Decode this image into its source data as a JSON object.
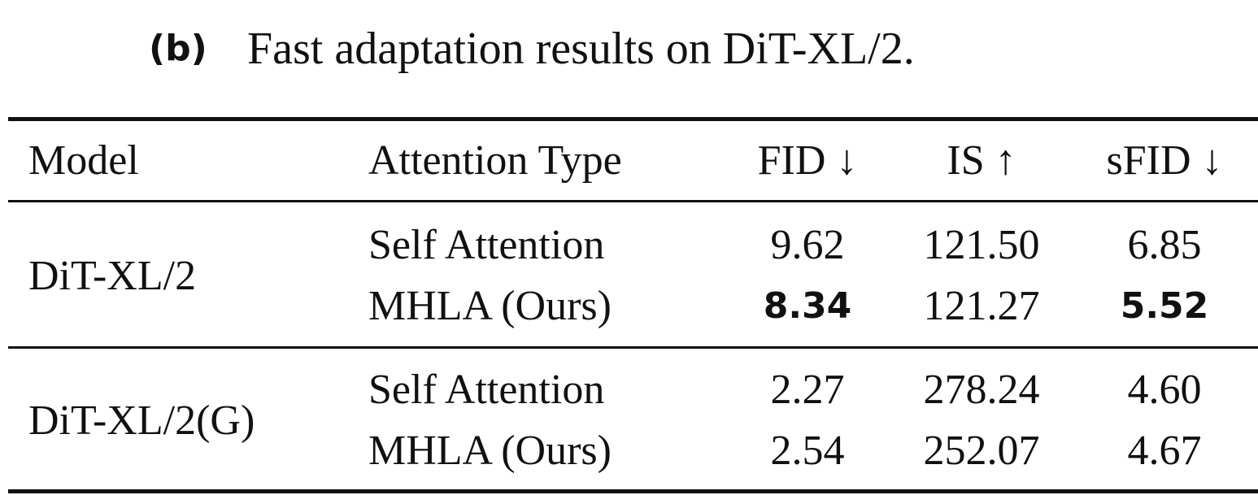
{
  "caption": {
    "label": "(b)",
    "text": "Fast adaptation results on DiT-XL/2."
  },
  "table": {
    "headers": [
      "Model",
      "Attention Type",
      "FID ↓",
      "IS ↑",
      "sFID ↓"
    ],
    "groups": [
      {
        "model": "DiT-XL/2",
        "rows": [
          [
            {
              "text": "Self Attention"
            },
            {
              "text": "9.62"
            },
            {
              "text": "121.50"
            },
            {
              "text": "6.85"
            }
          ],
          [
            {
              "text": "MHLA (Ours)"
            },
            {
              "text": "8.34",
              "bold": true
            },
            {
              "text": "121.27"
            },
            {
              "text": "5.52",
              "bold": true
            }
          ]
        ]
      },
      {
        "model": "DiT-XL/2(G)",
        "rows": [
          [
            {
              "text": "Self Attention"
            },
            {
              "text": "2.27"
            },
            {
              "text": "278.24"
            },
            {
              "text": "4.60"
            }
          ],
          [
            {
              "text": "MHLA (Ours)"
            },
            {
              "text": "2.54"
            },
            {
              "text": "252.07"
            },
            {
              "text": "4.67"
            }
          ]
        ]
      }
    ]
  }
}
